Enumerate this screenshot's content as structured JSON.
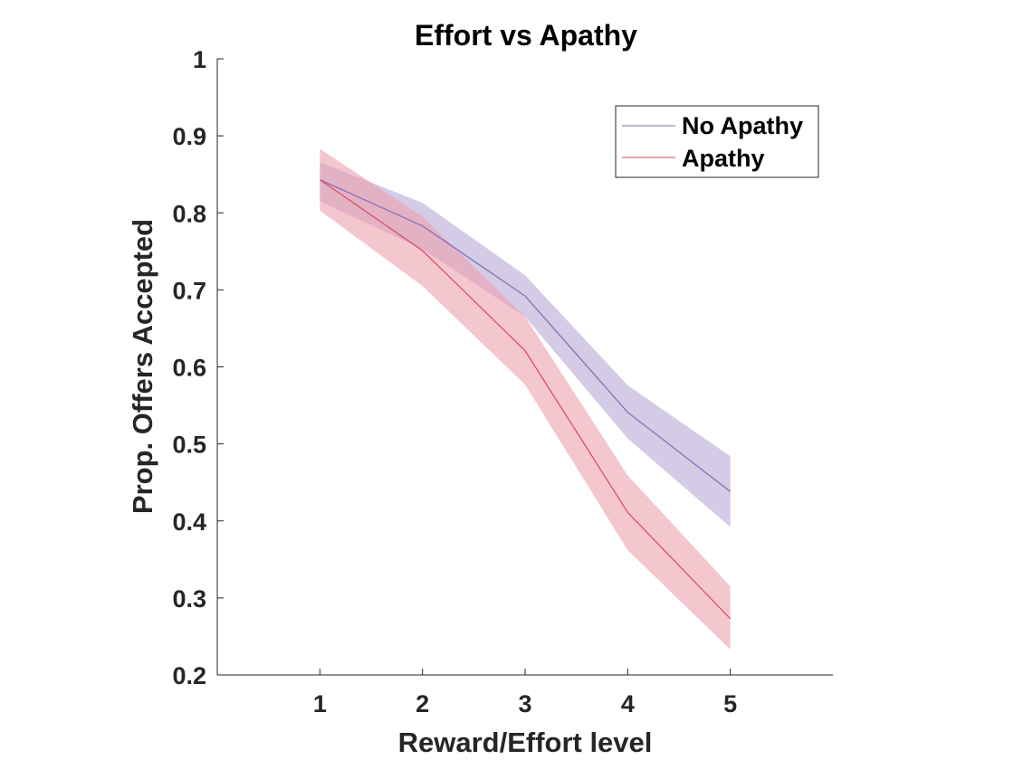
{
  "chart_data": {
    "type": "line",
    "title": "Effort vs Apathy",
    "xlabel": "Reward/Effort level",
    "ylabel": "Prop. Offers Accepted",
    "xlim": [
      0,
      6
    ],
    "ylim": [
      0.2,
      1
    ],
    "xticks": [
      1,
      2,
      3,
      4,
      5
    ],
    "yticks": [
      0.2,
      0.3,
      0.4,
      0.5,
      0.6,
      0.7,
      0.8,
      0.9,
      1
    ],
    "ytick_labels": [
      "0.2",
      "0.3",
      "0.4",
      "0.5",
      "0.6",
      "0.7",
      "0.8",
      "0.9",
      "1"
    ],
    "grid": false,
    "legend_position": "top-right",
    "x": [
      1,
      2,
      3,
      4,
      5
    ],
    "series": [
      {
        "name": "No Apathy",
        "values": [
          0.843,
          0.783,
          0.692,
          0.541,
          0.438
        ],
        "lower": [
          0.815,
          0.753,
          0.665,
          0.507,
          0.392
        ],
        "upper": [
          0.866,
          0.813,
          0.719,
          0.576,
          0.484
        ],
        "line_color": "#7E6AB3",
        "fill_color": "#B8A9D6"
      },
      {
        "name": "Apathy",
        "values": [
          0.843,
          0.751,
          0.621,
          0.411,
          0.273
        ],
        "lower": [
          0.803,
          0.705,
          0.577,
          0.362,
          0.233
        ],
        "upper": [
          0.883,
          0.795,
          0.665,
          0.459,
          0.315
        ],
        "line_color": "#D9475E",
        "fill_color": "#EDA0AE"
      }
    ]
  }
}
